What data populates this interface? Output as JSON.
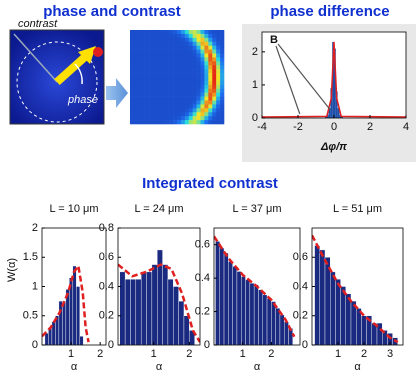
{
  "titles": {
    "phase_contrast": "phase and contrast",
    "phase_difference": "phase difference",
    "integrated": "Integrated contrast"
  },
  "labels": {
    "contrast": "contrast",
    "phase": "phase"
  },
  "chart_data": [
    {
      "type": "histogram",
      "xlabel": "Δφ/π",
      "annotation": "B",
      "xlim": [
        -4,
        4
      ],
      "ylim": [
        0,
        2.6
      ],
      "xticks": [
        -4,
        -2,
        0,
        2,
        4
      ],
      "yticks": [
        0,
        1,
        2
      ],
      "color": "#1f4fa8",
      "bins": [
        -0.5,
        -0.4,
        -0.3,
        -0.2,
        -0.1,
        0,
        0.1,
        0.2,
        0.3,
        0.4,
        0.5
      ],
      "values": [
        0.05,
        0.1,
        0.3,
        0.9,
        2.3,
        2.1,
        0.8,
        0.3,
        0.1,
        0.05
      ],
      "fit": {
        "color": "#e02020",
        "x": [
          -4,
          -0.4,
          -0.15,
          0,
          0.15,
          0.4,
          4
        ],
        "y": [
          0.03,
          0.05,
          0.6,
          2.3,
          0.6,
          0.05,
          0.03
        ]
      }
    },
    {
      "type": "histogram",
      "title": "L = 10 μm",
      "ylabel": "W(α)",
      "xlabel": "α",
      "xlim": [
        0,
        2.2
      ],
      "ylim": [
        0,
        2
      ],
      "xticks": [
        1,
        2
      ],
      "yticks": [
        0,
        0.5,
        1,
        1.5,
        2
      ],
      "color": "#1a2a80",
      "bins": [
        0.1,
        0.22,
        0.34,
        0.46,
        0.58,
        0.7,
        0.82,
        0.94,
        1.06,
        1.18,
        1.3,
        1.42
      ],
      "values": [
        0.2,
        0.3,
        0.4,
        0.5,
        0.75,
        0.75,
        0.95,
        1.15,
        1.35,
        1.0,
        0.15
      ],
      "fit": {
        "color": "#e02020",
        "x": [
          0,
          0.3,
          0.6,
          0.9,
          1.1,
          1.25,
          1.4,
          1.5,
          1.6
        ],
        "y": [
          0.15,
          0.3,
          0.55,
          0.9,
          1.25,
          1.35,
          0.9,
          0.3,
          0.05
        ]
      }
    },
    {
      "type": "histogram",
      "title": "L = 24 μm",
      "xlabel": "α",
      "xlim": [
        0,
        2.3
      ],
      "ylim": [
        0,
        0.8
      ],
      "xticks": [
        1,
        2
      ],
      "yticks": [
        0,
        0.2,
        0.4,
        0.6,
        0.8
      ],
      "color": "#1a2a80",
      "bins": [
        0.05,
        0.2,
        0.35,
        0.5,
        0.65,
        0.8,
        0.95,
        1.1,
        1.25,
        1.4,
        1.55,
        1.7,
        1.85,
        2.0,
        2.15
      ],
      "values": [
        0.5,
        0.45,
        0.45,
        0.45,
        0.5,
        0.5,
        0.55,
        0.65,
        0.55,
        0.45,
        0.4,
        0.3,
        0.2,
        0.1
      ],
      "fit": {
        "color": "#e02020",
        "x": [
          0,
          0.4,
          0.8,
          1.2,
          1.5,
          1.8,
          2.1,
          2.3
        ],
        "y": [
          0.55,
          0.47,
          0.5,
          0.55,
          0.52,
          0.35,
          0.1,
          0.02
        ]
      }
    },
    {
      "type": "histogram",
      "title": "L = 37 μm",
      "xlabel": "α",
      "xlim": [
        0,
        3
      ],
      "ylim": [
        0,
        0.7
      ],
      "xticks": [
        1,
        2
      ],
      "yticks": [
        0,
        0.2,
        0.4,
        0.6
      ],
      "color": "#1a2a80",
      "bins": [
        0.05,
        0.2,
        0.35,
        0.5,
        0.65,
        0.8,
        0.95,
        1.1,
        1.25,
        1.4,
        1.55,
        1.7,
        1.85,
        2.0,
        2.15,
        2.3,
        2.45,
        2.6,
        2.75
      ],
      "values": [
        0.62,
        0.58,
        0.55,
        0.5,
        0.47,
        0.44,
        0.41,
        0.39,
        0.37,
        0.36,
        0.33,
        0.3,
        0.28,
        0.26,
        0.22,
        0.18,
        0.14,
        0.1
      ],
      "fit": {
        "color": "#e02020",
        "x": [
          0,
          0.5,
          1,
          1.5,
          2,
          2.5,
          2.8
        ],
        "y": [
          0.65,
          0.52,
          0.42,
          0.35,
          0.27,
          0.15,
          0.05
        ]
      }
    },
    {
      "type": "histogram",
      "title": "L = 51 μm",
      "xlabel": "α",
      "xlim": [
        0,
        3.5
      ],
      "ylim": [
        0,
        0.8
      ],
      "xticks": [
        1,
        2,
        3
      ],
      "yticks": [
        0,
        0.2,
        0.4,
        0.6
      ],
      "color": "#1a2a80",
      "bins": [
        0.1,
        0.3,
        0.5,
        0.7,
        0.9,
        1.1,
        1.3,
        1.5,
        1.7,
        1.9,
        2.1,
        2.3,
        2.5,
        2.7,
        2.9,
        3.1,
        3.3
      ],
      "values": [
        0.68,
        0.65,
        0.6,
        0.5,
        0.45,
        0.4,
        0.35,
        0.3,
        0.25,
        0.2,
        0.2,
        0.15,
        0.15,
        0.1,
        0.08,
        0.05
      ],
      "fit": {
        "color": "#e02020",
        "x": [
          0,
          0.5,
          1,
          1.5,
          2,
          2.5,
          3,
          3.3
        ],
        "y": [
          0.75,
          0.58,
          0.42,
          0.3,
          0.2,
          0.13,
          0.05,
          0.02
        ]
      }
    }
  ]
}
